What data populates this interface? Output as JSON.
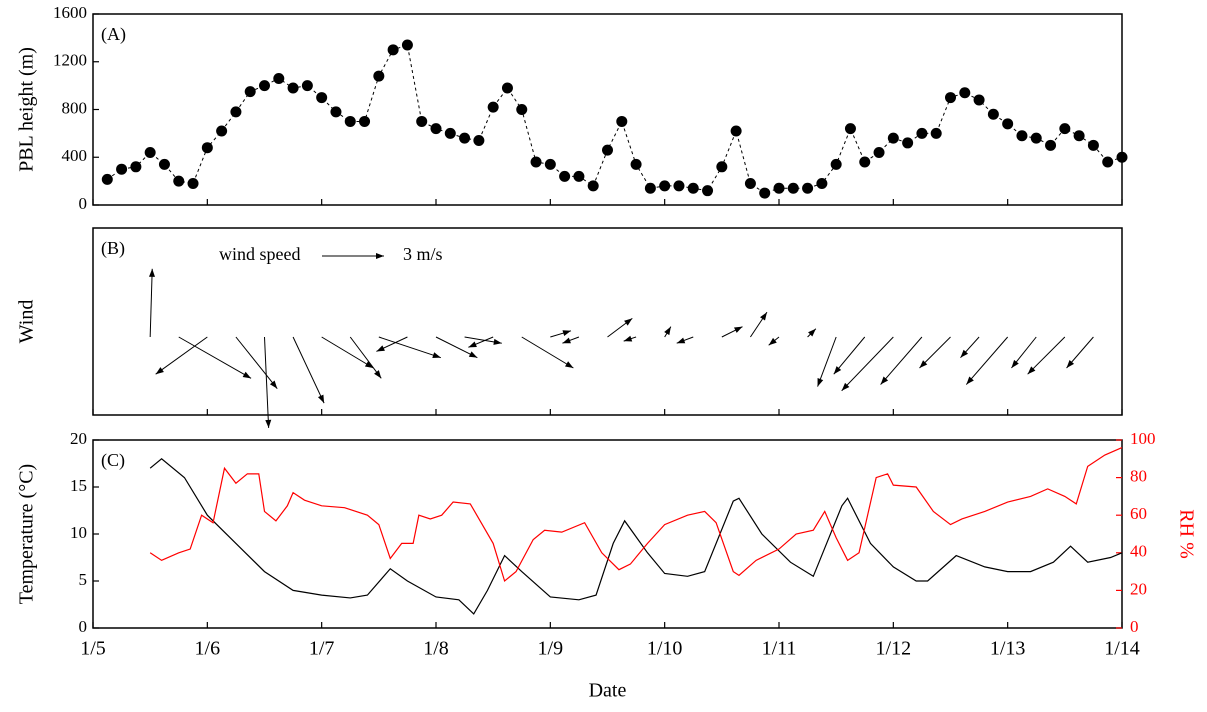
{
  "chart_data": [
    {
      "type": "line",
      "annotation": "(A)",
      "y_label": "PBL height (m)",
      "color": "#000000",
      "line_style": "dashed",
      "x": [
        5.125,
        5.25,
        5.375,
        5.5,
        5.625,
        5.75,
        5.875,
        6,
        6.125,
        6.25,
        6.375,
        6.5,
        6.625,
        6.75,
        6.875,
        7,
        7.125,
        7.25,
        7.375,
        7.5,
        7.625,
        7.75,
        7.875,
        8,
        8.125,
        8.25,
        8.375,
        8.5,
        8.625,
        8.75,
        8.875,
        9,
        9.125,
        9.25,
        9.375,
        9.5,
        9.625,
        9.75,
        9.875,
        10,
        10.125,
        10.25,
        10.375,
        10.5,
        10.625,
        10.75,
        10.875,
        11,
        11.125,
        11.25,
        11.375,
        11.5,
        11.625,
        11.75,
        11.875,
        12,
        12.125,
        12.25,
        12.375,
        12.5,
        12.625,
        12.75,
        12.875,
        13,
        13.125,
        13.25,
        13.375,
        13.5,
        13.625,
        13.75,
        13.875,
        14
      ],
      "values": [
        215,
        300,
        320,
        440,
        340,
        200,
        180,
        480,
        620,
        780,
        950,
        1000,
        1060,
        980,
        1000,
        900,
        780,
        700,
        700,
        1080,
        1300,
        1340,
        700,
        640,
        600,
        560,
        540,
        820,
        980,
        800,
        360,
        340,
        240,
        240,
        160,
        460,
        700,
        340,
        140,
        160,
        160,
        140,
        120,
        320,
        620,
        180,
        100,
        140,
        140,
        140,
        180,
        340,
        640,
        360,
        440,
        560,
        520,
        600,
        600,
        900,
        940,
        880,
        760,
        680,
        580,
        560,
        500,
        640,
        580,
        500,
        360,
        400
      ],
      "xlim": [
        5,
        14
      ],
      "ylim": [
        0,
        1600
      ],
      "yticks": [
        0,
        400,
        800,
        1200,
        1600
      ]
    },
    {
      "type": "quiver",
      "annotation": "(B)",
      "y_label": "Wind",
      "color": "#000000",
      "reference": {
        "text": "wind speed",
        "value": 3,
        "label": "3 m/s"
      },
      "x": [
        5.5,
        5.75,
        6,
        6.25,
        6.5,
        6.75,
        7,
        7.25,
        7.5,
        7.75,
        8,
        8.25,
        8.5,
        8.75,
        9,
        9.25,
        9.5,
        9.75,
        10,
        10.25,
        10.5,
        10.75,
        11,
        11.25,
        11.5,
        11.75,
        12,
        12.25,
        12.5,
        12.75,
        13,
        13.25,
        13.5,
        13.75
      ],
      "u": [
        0.1,
        3.5,
        -2.5,
        2,
        0.2,
        1.5,
        2.5,
        1.5,
        3,
        -1.5,
        2,
        1.8,
        -1.2,
        2.5,
        1,
        -0.8,
        1.2,
        -0.6,
        0.3,
        -0.8,
        1,
        0.8,
        -0.5,
        0.4,
        -0.9,
        -1.5,
        -2.5,
        -2,
        -1.5,
        -0.9,
        -2,
        -1.2,
        -1.8,
        -1.3
      ],
      "v": [
        3.3,
        -2,
        -1.8,
        -2.5,
        -4.4,
        -3.2,
        -1.5,
        -2,
        -1,
        -0.7,
        -1,
        -0.3,
        -0.5,
        -1.5,
        0.3,
        -0.3,
        0.9,
        -0.2,
        0.5,
        -0.3,
        0.5,
        1.2,
        -0.4,
        0.4,
        -2.4,
        -1.8,
        -2.6,
        -2.3,
        -1.5,
        -1,
        -2.3,
        -1.5,
        -1.8,
        -1.5
      ],
      "xlim": [
        5,
        14
      ]
    },
    {
      "type": "line",
      "annotation": "(C)",
      "y_label": "Temperature (°C)",
      "y2_label": "RH %",
      "x_label": "Date",
      "y2_color": "#ff0000",
      "xlim": [
        5,
        14
      ],
      "xticks": [
        {
          "value": 5,
          "label": "1/5"
        },
        {
          "value": 6,
          "label": "1/6"
        },
        {
          "value": 7,
          "label": "1/7"
        },
        {
          "value": 8,
          "label": "1/8"
        },
        {
          "value": 9,
          "label": "1/9"
        },
        {
          "value": 10,
          "label": "1/10"
        },
        {
          "value": 11,
          "label": "1/11"
        },
        {
          "value": 12,
          "label": "1/12"
        },
        {
          "value": 13,
          "label": "1/13"
        },
        {
          "value": 14,
          "label": "1/14"
        }
      ],
      "ylim": [
        0,
        20
      ],
      "yticks": [
        0,
        5,
        10,
        15,
        20
      ],
      "y2lim": [
        0,
        100
      ],
      "y2ticks": [
        0,
        20,
        40,
        60,
        80,
        100
      ],
      "series": [
        {
          "name": "Temperature",
          "color": "#000000",
          "x": [
            5.5,
            5.6,
            5.8,
            6.0,
            6.25,
            6.5,
            6.75,
            7.0,
            7.25,
            7.4,
            7.6,
            7.75,
            8.0,
            8.2,
            8.33,
            8.45,
            8.6,
            8.75,
            9.0,
            9.25,
            9.4,
            9.55,
            9.65,
            9.85,
            10.0,
            10.2,
            10.35,
            10.6,
            10.65,
            10.85,
            11.1,
            11.3,
            11.55,
            11.6,
            11.8,
            12.0,
            12.2,
            12.3,
            12.55,
            12.8,
            13.0,
            13.2,
            13.4,
            13.55,
            13.7,
            13.9,
            14.0
          ],
          "values": [
            17,
            18,
            16,
            12,
            9,
            6,
            4,
            3.5,
            3.2,
            3.5,
            6.3,
            5,
            3.3,
            3,
            1.5,
            4,
            7.7,
            6,
            3.3,
            3,
            3.5,
            9,
            11.4,
            8,
            5.8,
            5.5,
            6,
            13.5,
            13.8,
            10,
            7,
            5.5,
            13,
            13.8,
            9,
            6.5,
            5,
            5,
            7.7,
            6.5,
            6,
            6,
            7,
            8.7,
            7,
            7.5,
            8
          ]
        },
        {
          "name": "RH",
          "color": "#ff0000",
          "axis": "y2",
          "x": [
            5.5,
            5.6,
            5.75,
            5.85,
            5.95,
            6.05,
            6.15,
            6.25,
            6.35,
            6.45,
            6.5,
            6.6,
            6.7,
            6.75,
            6.85,
            7.0,
            7.2,
            7.4,
            7.5,
            7.6,
            7.7,
            7.8,
            7.85,
            7.95,
            8.05,
            8.15,
            8.3,
            8.5,
            8.6,
            8.7,
            8.85,
            8.95,
            9.1,
            9.3,
            9.45,
            9.6,
            9.7,
            9.85,
            10.0,
            10.2,
            10.35,
            10.45,
            10.6,
            10.65,
            10.8,
            11.0,
            11.15,
            11.3,
            11.4,
            11.5,
            11.6,
            11.7,
            11.85,
            11.95,
            12.0,
            12.2,
            12.35,
            12.5,
            12.6,
            12.8,
            13.0,
            13.2,
            13.35,
            13.5,
            13.6,
            13.7,
            13.85,
            14.0
          ],
          "values": [
            40,
            36,
            40,
            42,
            60,
            56,
            85,
            77,
            82,
            82,
            62,
            57,
            65,
            72,
            68,
            65,
            64,
            60,
            55,
            37,
            45,
            45,
            60,
            58,
            60,
            67,
            66,
            45,
            25,
            30,
            47,
            52,
            51,
            56,
            40,
            31,
            34,
            45,
            55,
            60,
            62,
            56,
            30,
            28,
            36,
            42,
            50,
            52,
            62,
            48,
            36,
            40,
            80,
            82,
            76,
            75,
            62,
            55,
            58,
            62,
            67,
            70,
            74,
            70,
            66,
            86,
            92,
            96
          ]
        }
      ]
    }
  ]
}
